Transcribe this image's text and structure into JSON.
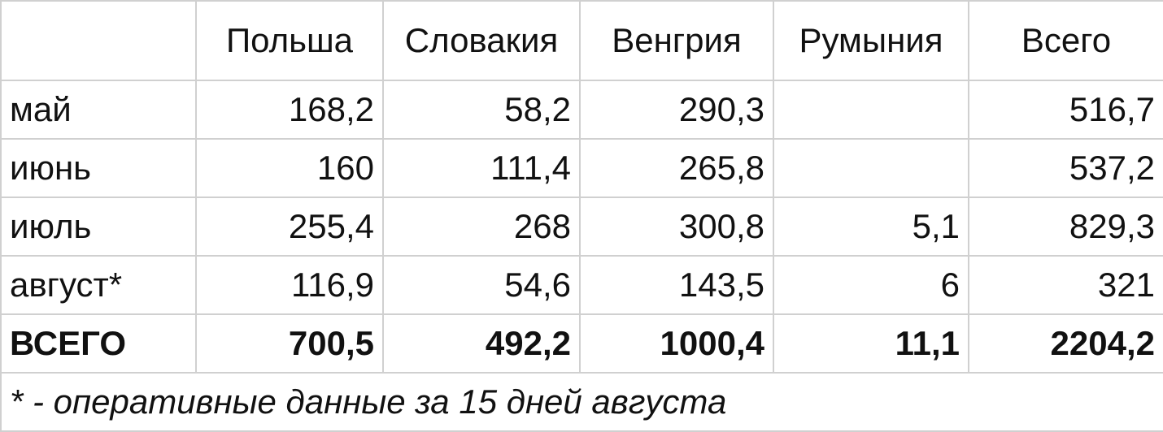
{
  "chart_data": {
    "type": "table",
    "columns": [
      "",
      "Польша",
      "Словакия",
      "Венгрия",
      "Румыния",
      "Всего"
    ],
    "rows": [
      [
        "май",
        "168,2",
        "58,2",
        "290,3",
        "",
        "516,7"
      ],
      [
        "июнь",
        "160",
        "111,4",
        "265,8",
        "",
        "537,2"
      ],
      [
        "июль",
        "255,4",
        "268",
        "300,8",
        "5,1",
        "829,3"
      ],
      [
        "август*",
        "116,9",
        "54,6",
        "143,5",
        "6",
        "321"
      ],
      [
        "ВСЕГО",
        "700,5",
        "492,2",
        "1000,4",
        "11,1",
        "2204,2"
      ]
    ],
    "footnote": "* - оперативные данные за 15 дней августа"
  }
}
